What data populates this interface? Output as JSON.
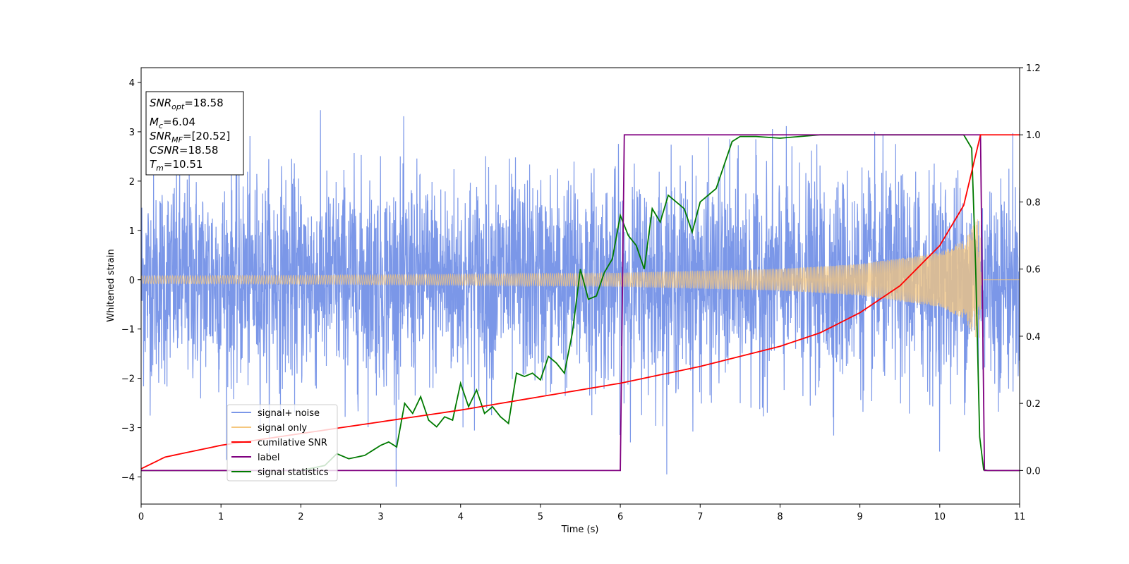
{
  "chart_data": {
    "type": "line",
    "title": "",
    "xlabel": "Time (s)",
    "ylabel": "Whitened strain",
    "y2label": "",
    "xlim": [
      0,
      11
    ],
    "ylim": [
      -4.55,
      4.3
    ],
    "y2lim": [
      -0.1,
      1.2
    ],
    "x_ticks": [
      0,
      1,
      2,
      3,
      4,
      5,
      6,
      7,
      8,
      9,
      10,
      11
    ],
    "y_ticks": [
      -4,
      -3,
      -2,
      -1,
      0,
      1,
      2,
      3,
      4
    ],
    "y2_ticks": [
      0.0,
      0.2,
      0.4,
      0.6,
      0.8,
      1.0,
      1.2
    ],
    "grid": false,
    "legend_placement": "lower-left",
    "info_box": {
      "snr_opt": {
        "sym": "SNR",
        "sub": "opt",
        "val": "=18.58"
      },
      "mc": {
        "sym": "M",
        "sub": "c",
        "val": "=6.04"
      },
      "snr_mf": {
        "sym": "SNR",
        "sub": "MF",
        "val": "=[20.52]"
      },
      "csnr": {
        "sym": "CSNR",
        "val": "=18.58"
      },
      "tm": {
        "sym": "T",
        "sub": "m",
        "val": "=10.51"
      }
    },
    "series": [
      {
        "name": "signal+ noise",
        "axis": "left",
        "color": "#7b97e8",
        "description_values": {
          "noise_std": 1.05,
          "t_range": [
            0,
            11
          ]
        }
      },
      {
        "name": "signal only",
        "axis": "left",
        "color": "#f5c77e",
        "envelope": {
          "x": [
            0,
            2,
            4,
            6,
            8,
            9,
            10,
            10.3,
            10.5,
            10.52
          ],
          "amp": [
            0.08,
            0.09,
            0.11,
            0.14,
            0.22,
            0.32,
            0.55,
            0.8,
            1.3,
            0.0
          ]
        }
      },
      {
        "name": "cumilative SNR",
        "axis": "right",
        "color": "#ff0000",
        "x": [
          0,
          0.3,
          1,
          2,
          3,
          4,
          5,
          6,
          7,
          8,
          8.5,
          9,
          9.5,
          10,
          10.3,
          10.51,
          11
        ],
        "y": [
          0.005,
          0.04,
          0.075,
          0.11,
          0.145,
          0.18,
          0.22,
          0.26,
          0.31,
          0.37,
          0.41,
          0.47,
          0.55,
          0.67,
          0.79,
          1.0,
          1.0
        ]
      },
      {
        "name": "label",
        "axis": "right",
        "color": "#800080",
        "x": [
          0,
          6.0,
          6.05,
          10.51,
          10.56,
          11
        ],
        "y": [
          0.0,
          0.0,
          1.0,
          1.0,
          0.0,
          0.0
        ]
      },
      {
        "name": "signal statistics",
        "axis": "right",
        "color": "#007a00",
        "x": [
          0,
          2.0,
          2.3,
          2.45,
          2.6,
          2.8,
          2.9,
          3.0,
          3.1,
          3.2,
          3.3,
          3.4,
          3.5,
          3.6,
          3.7,
          3.8,
          3.9,
          4.0,
          4.1,
          4.2,
          4.3,
          4.4,
          4.5,
          4.6,
          4.7,
          4.8,
          4.9,
          5.0,
          5.1,
          5.2,
          5.3,
          5.4,
          5.5,
          5.6,
          5.7,
          5.8,
          5.9,
          6.0,
          6.1,
          6.2,
          6.3,
          6.4,
          6.5,
          6.6,
          6.7,
          6.8,
          6.9,
          7.0,
          7.1,
          7.2,
          7.3,
          7.4,
          7.5,
          7.7,
          8.0,
          8.5,
          9.0,
          9.5,
          10.0,
          10.3,
          10.4,
          10.45,
          10.5,
          10.55,
          10.6,
          10.7,
          11
        ],
        "y": [
          0.0,
          0.0,
          0.015,
          0.05,
          0.035,
          0.045,
          0.06,
          0.075,
          0.085,
          0.07,
          0.2,
          0.17,
          0.22,
          0.15,
          0.13,
          0.16,
          0.15,
          0.26,
          0.19,
          0.24,
          0.17,
          0.19,
          0.16,
          0.14,
          0.29,
          0.28,
          0.29,
          0.27,
          0.34,
          0.32,
          0.29,
          0.41,
          0.6,
          0.51,
          0.52,
          0.59,
          0.63,
          0.76,
          0.7,
          0.67,
          0.6,
          0.78,
          0.74,
          0.82,
          0.8,
          0.78,
          0.71,
          0.8,
          0.82,
          0.84,
          0.91,
          0.98,
          0.995,
          0.995,
          0.99,
          1.0,
          1.0,
          1.0,
          1.0,
          1.0,
          0.96,
          0.6,
          0.1,
          0.002,
          0.0,
          0.0,
          0.0
        ]
      }
    ]
  }
}
